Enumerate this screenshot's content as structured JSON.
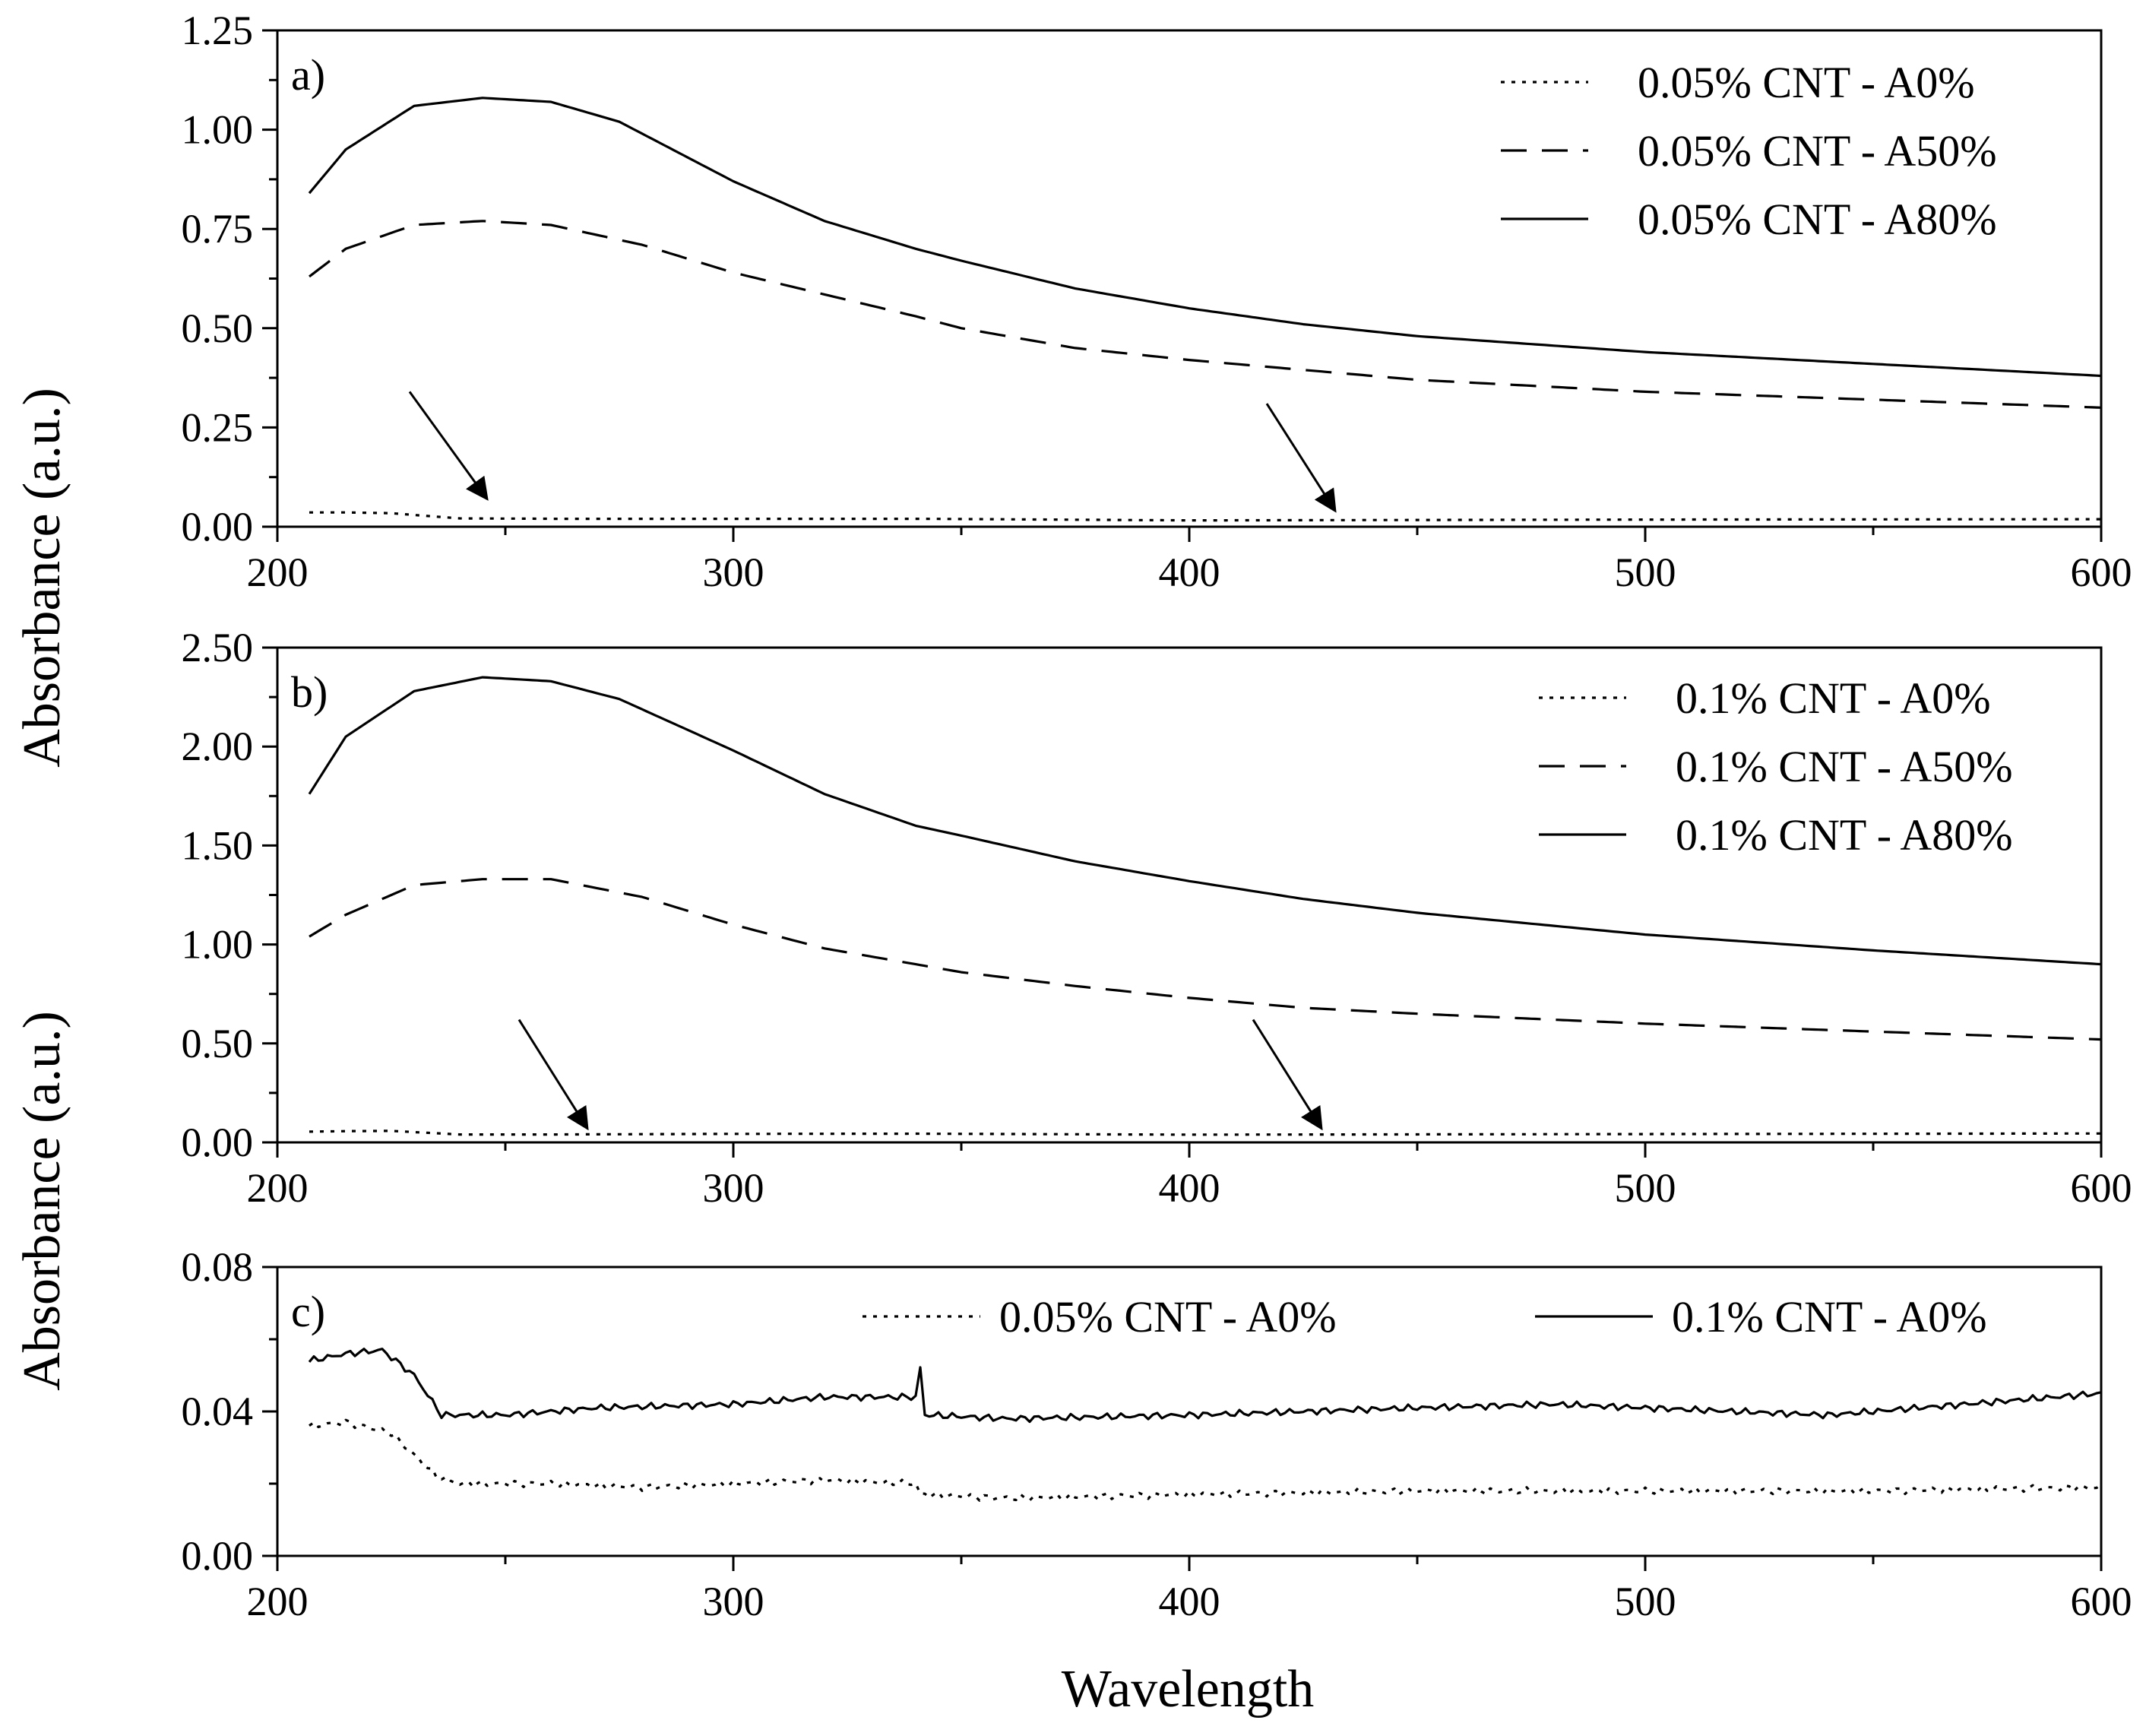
{
  "chart_data": {
    "type": "line",
    "xlabel": "Wavelength",
    "ylabel": "Absorbance (a.u.)",
    "xlim": [
      200,
      600
    ],
    "x_ticks": [
      200,
      300,
      400,
      500,
      600
    ],
    "x_tick_labels": [
      "200",
      "300",
      "400",
      "500",
      "600"
    ],
    "panels": [
      {
        "id": "a",
        "label": "a)",
        "ylim": [
          0,
          1.25
        ],
        "y_ticks": [
          0,
          0.25,
          0.5,
          0.75,
          1.0,
          1.25
        ],
        "y_tick_labels": [
          "0.00",
          "0.25",
          "0.50",
          "0.75",
          "1.00",
          "1.25"
        ],
        "legend": "top-right",
        "series": [
          {
            "name": "0.05% CNT - A0%",
            "style": "dotted",
            "x": [
              207,
              215,
              225,
              240,
              260,
              300,
              340,
              400,
              500,
              600
            ],
            "values": [
              0.036,
              0.036,
              0.034,
              0.021,
              0.02,
              0.02,
              0.02,
              0.016,
              0.018,
              0.019
            ]
          },
          {
            "name": "0.05% CNT - A50%",
            "style": "dashed",
            "x": [
              207,
              215,
              230,
              245,
              260,
              280,
              300,
              340,
              350,
              375,
              400,
              420,
              450,
              500,
              550,
              600
            ],
            "values": [
              0.63,
              0.7,
              0.76,
              0.77,
              0.76,
              0.71,
              0.64,
              0.53,
              0.5,
              0.45,
              0.42,
              0.4,
              0.37,
              0.34,
              0.32,
              0.3
            ]
          },
          {
            "name": "0.05% CNT - A80%",
            "style": "solid",
            "x": [
              207,
              215,
              230,
              245,
              260,
              275,
              300,
              320,
              340,
              350,
              375,
              400,
              425,
              450,
              500,
              550,
              600
            ],
            "values": [
              0.84,
              0.95,
              1.06,
              1.08,
              1.07,
              1.02,
              0.87,
              0.77,
              0.7,
              0.67,
              0.6,
              0.55,
              0.51,
              0.48,
              0.44,
              0.41,
              0.38
            ]
          }
        ],
        "annotations": [
          {
            "type": "arrow",
            "from": [
              229,
              0.34
            ],
            "to": [
              246,
              0.07
            ]
          },
          {
            "type": "arrow",
            "from": [
              417,
              0.31
            ],
            "to": [
              432,
              0.04
            ]
          }
        ]
      },
      {
        "id": "b",
        "label": "b)",
        "ylim": [
          0,
          2.5
        ],
        "y_ticks": [
          0,
          0.5,
          1.0,
          1.5,
          2.0,
          2.5
        ],
        "y_tick_labels": [
          "0.00",
          "0.50",
          "1.00",
          "1.50",
          "2.00",
          "2.50"
        ],
        "legend": "top-right",
        "series": [
          {
            "name": "0.1% CNT - A0%",
            "style": "dotted",
            "x": [
              207,
              215,
              225,
              240,
              260,
              300,
              340,
              400,
              500,
              600
            ],
            "values": [
              0.054,
              0.057,
              0.058,
              0.04,
              0.04,
              0.043,
              0.044,
              0.039,
              0.042,
              0.045
            ]
          },
          {
            "name": "0.1% CNT - A50%",
            "style": "dashed",
            "x": [
              207,
              215,
              230,
              245,
              260,
              280,
              300,
              320,
              340,
              350,
              375,
              400,
              425,
              450,
              500,
              550,
              600
            ],
            "values": [
              1.04,
              1.15,
              1.3,
              1.33,
              1.33,
              1.24,
              1.1,
              0.98,
              0.9,
              0.86,
              0.79,
              0.73,
              0.68,
              0.65,
              0.6,
              0.56,
              0.52
            ]
          },
          {
            "name": "0.1% CNT - A80%",
            "style": "solid",
            "x": [
              207,
              215,
              230,
              245,
              260,
              275,
              300,
              320,
              340,
              350,
              375,
              400,
              425,
              450,
              500,
              550,
              600
            ],
            "values": [
              1.76,
              2.05,
              2.28,
              2.35,
              2.33,
              2.24,
              1.98,
              1.76,
              1.6,
              1.55,
              1.42,
              1.32,
              1.23,
              1.16,
              1.05,
              0.97,
              0.9
            ]
          }
        ],
        "annotations": [
          {
            "type": "arrow",
            "from": [
              253,
              0.62
            ],
            "to": [
              268,
              0.07
            ]
          },
          {
            "type": "arrow",
            "from": [
              414,
              0.62
            ],
            "to": [
              429,
              0.07
            ]
          }
        ]
      },
      {
        "id": "c",
        "label": "c)",
        "ylim": [
          0,
          0.08
        ],
        "y_ticks": [
          0,
          0.04,
          0.08
        ],
        "y_tick_labels": [
          "0.00",
          "0.04",
          "0.08"
        ],
        "legend": "top",
        "series": [
          {
            "name": "0.05% CNT - A0%",
            "style": "dotted",
            "x": [
              207,
              215,
              225,
              235,
              240,
              260,
              280,
              300,
              320,
              340,
              341,
              360,
              400,
              450,
              500,
              550,
              600
            ],
            "values": [
              0.036,
              0.037,
              0.034,
              0.022,
              0.02,
              0.02,
              0.019,
              0.02,
              0.021,
              0.02,
              0.017,
              0.016,
              0.017,
              0.018,
              0.018,
              0.018,
              0.019
            ]
          },
          {
            "name": "0.1% CNT - A0%",
            "style": "solid",
            "x": [
              207,
              215,
              223,
              230,
              236,
              250,
              270,
              300,
              320,
              340,
              341,
              342,
              343,
              360,
              400,
              450,
              480,
              500,
              540,
              560,
              600
            ],
            "values": [
              0.054,
              0.056,
              0.057,
              0.05,
              0.039,
              0.039,
              0.041,
              0.042,
              0.044,
              0.044,
              0.052,
              0.039,
              0.039,
              0.038,
              0.039,
              0.041,
              0.042,
              0.041,
              0.039,
              0.041,
              0.045
            ]
          }
        ],
        "annotations": []
      }
    ]
  }
}
